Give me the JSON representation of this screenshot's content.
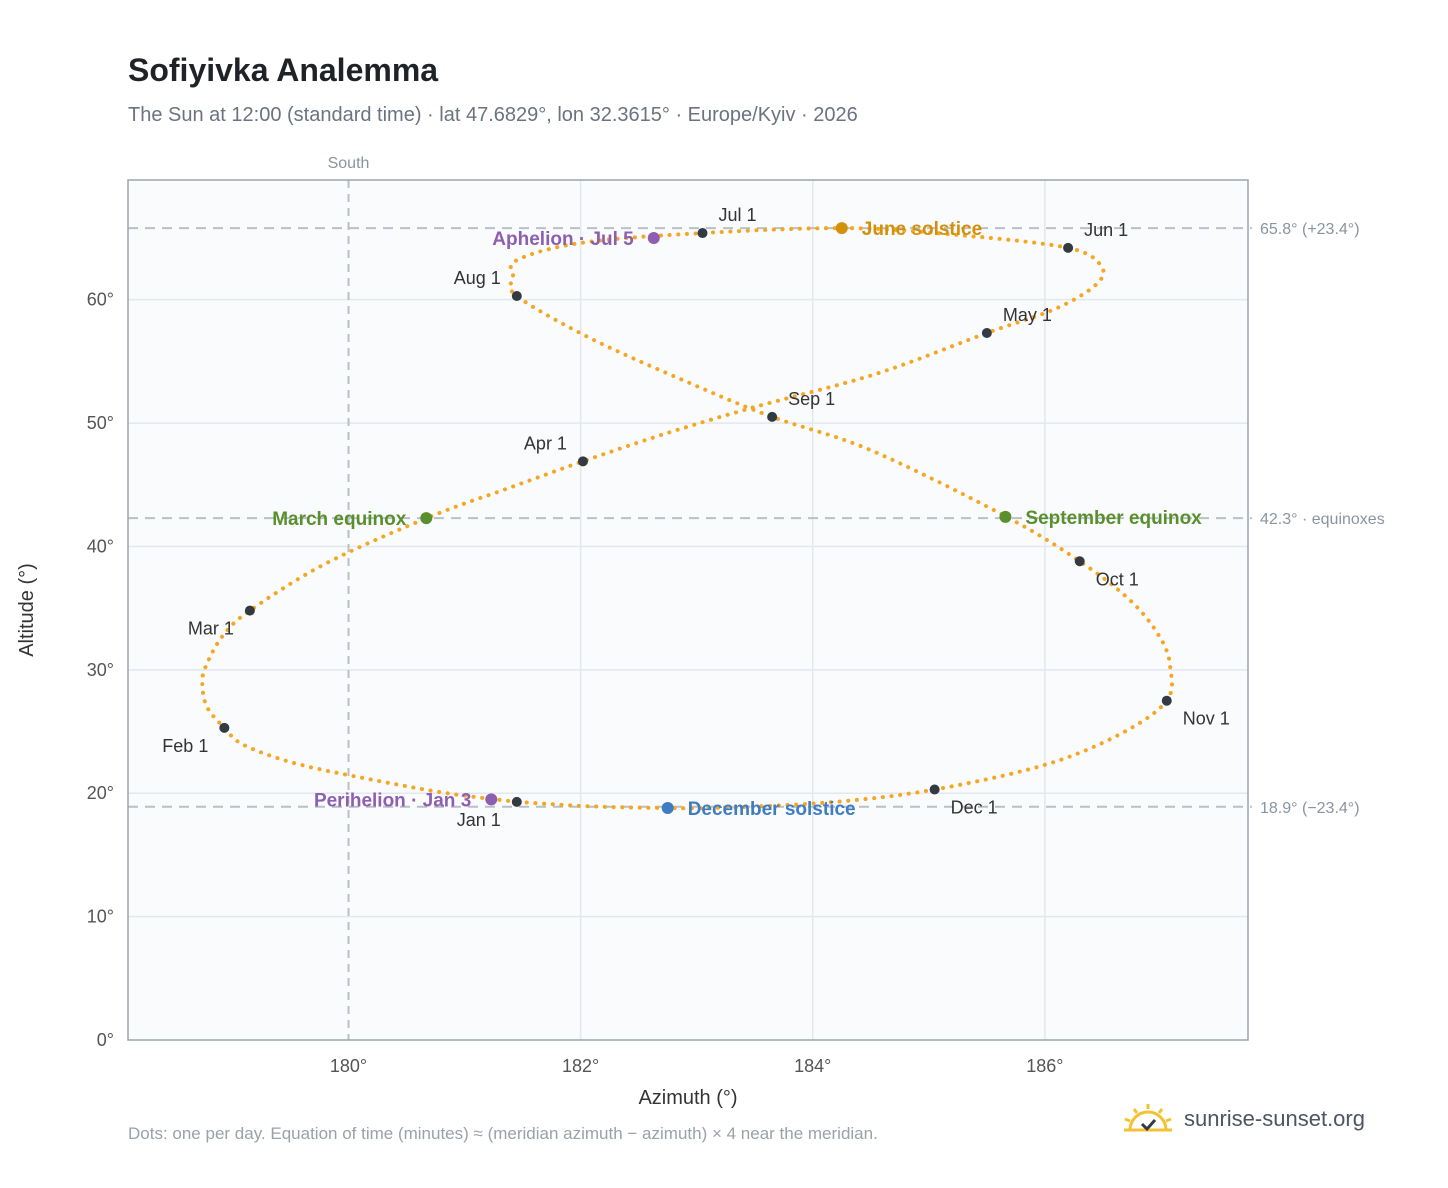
{
  "header": {
    "title": "Sofiyivka Analemma",
    "subtitle": "The Sun at 12:00 (standard time) · lat 47.6829°, lon 32.3615° · Europe/Kyiv · 2026"
  },
  "footer": {
    "note": "Dots: one per day. Equation of time (minutes) ≈ (meridian azimuth − azimuth) × 4 near the meridian.",
    "brand": "sunrise-sunset.org"
  },
  "colors": {
    "path": "#f5a623",
    "month_dot": "#333a41",
    "equinox": "#5a8f2e",
    "june_solstice": "#d4900a",
    "december_solstice": "#3f7cc4",
    "apsis": "#8e5fb0",
    "plot_bg": "#f9fbfd",
    "grid": "#e3e8ee",
    "reference_line": "#b8c0c8",
    "brand_icon": "#f2c230"
  },
  "chart_data": {
    "type": "scatter",
    "xlabel": "Azimuth (°)",
    "ylabel": "Altitude (°)",
    "xlim": [
      178.1,
      187.75
    ],
    "ylim": [
      0,
      69.7
    ],
    "xticks": [
      {
        "value": 180,
        "label": "180°"
      },
      {
        "value": 182,
        "label": "182°"
      },
      {
        "value": 184,
        "label": "184°"
      },
      {
        "value": 186,
        "label": "186°"
      }
    ],
    "yticks": [
      {
        "value": 0,
        "label": "0°"
      },
      {
        "value": 10,
        "label": "10°"
      },
      {
        "value": 20,
        "label": "20°"
      },
      {
        "value": 30,
        "label": "30°"
      },
      {
        "value": 40,
        "label": "40°"
      },
      {
        "value": 50,
        "label": "50°"
      },
      {
        "value": 60,
        "label": "60°"
      }
    ],
    "grid": true,
    "south_line": {
      "value": 180,
      "label": "South"
    },
    "reference_lines": [
      {
        "value": 65.8,
        "label": "65.8° (+23.4°)"
      },
      {
        "value": 42.3,
        "label": "42.3° · equinoxes"
      },
      {
        "value": 18.9,
        "label": "18.9° (−23.4°)"
      }
    ],
    "path_anchors": [
      {
        "x": 181.45,
        "y": 19.3
      },
      {
        "x": 180.85,
        "y": 20.0
      },
      {
        "x": 180.2,
        "y": 21.1
      },
      {
        "x": 179.55,
        "y": 22.4
      },
      {
        "x": 179.1,
        "y": 23.9
      },
      {
        "x": 178.93,
        "y": 25.3
      },
      {
        "x": 178.78,
        "y": 27.0
      },
      {
        "x": 178.74,
        "y": 29.0
      },
      {
        "x": 178.78,
        "y": 30.5
      },
      {
        "x": 178.92,
        "y": 32.8
      },
      {
        "x": 179.15,
        "y": 34.8
      },
      {
        "x": 179.8,
        "y": 38.6
      },
      {
        "x": 180.7,
        "y": 42.4
      },
      {
        "x": 181.4,
        "y": 44.8
      },
      {
        "x": 182.02,
        "y": 46.9
      },
      {
        "x": 182.75,
        "y": 49.2
      },
      {
        "x": 183.5,
        "y": 51.3
      },
      {
        "x": 184.55,
        "y": 54.0
      },
      {
        "x": 185.5,
        "y": 57.3
      },
      {
        "x": 186.1,
        "y": 59.3
      },
      {
        "x": 186.45,
        "y": 61.3
      },
      {
        "x": 186.48,
        "y": 62.8
      },
      {
        "x": 186.2,
        "y": 64.2
      },
      {
        "x": 185.3,
        "y": 65.2
      },
      {
        "x": 184.3,
        "y": 65.8
      },
      {
        "x": 183.05,
        "y": 65.4
      },
      {
        "x": 182.0,
        "y": 64.6
      },
      {
        "x": 181.45,
        "y": 63.2
      },
      {
        "x": 181.42,
        "y": 61.8
      },
      {
        "x": 181.45,
        "y": 60.3
      },
      {
        "x": 182.1,
        "y": 56.8
      },
      {
        "x": 183.0,
        "y": 53.0
      },
      {
        "x": 183.65,
        "y": 50.5
      },
      {
        "x": 184.5,
        "y": 47.8
      },
      {
        "x": 185.65,
        "y": 42.5
      },
      {
        "x": 186.3,
        "y": 38.8
      },
      {
        "x": 186.75,
        "y": 35.5
      },
      {
        "x": 187.0,
        "y": 32.5
      },
      {
        "x": 187.08,
        "y": 30.2
      },
      {
        "x": 187.05,
        "y": 27.5
      },
      {
        "x": 186.65,
        "y": 24.8
      },
      {
        "x": 186.0,
        "y": 22.3
      },
      {
        "x": 185.05,
        "y": 20.3
      },
      {
        "x": 184.2,
        "y": 19.3
      },
      {
        "x": 183.3,
        "y": 18.85
      },
      {
        "x": 182.75,
        "y": 18.8
      },
      {
        "x": 182.05,
        "y": 18.95
      },
      {
        "x": 181.45,
        "y": 19.3
      }
    ],
    "month_markers": [
      {
        "label": "Jan 1",
        "x": 181.45,
        "y": 19.3,
        "anchor": "below-left"
      },
      {
        "label": "Feb 1",
        "x": 178.93,
        "y": 25.3,
        "anchor": "below-left"
      },
      {
        "label": "Mar 1",
        "x": 179.15,
        "y": 34.8,
        "anchor": "below-left"
      },
      {
        "label": "Apr 1",
        "x": 182.02,
        "y": 46.9,
        "anchor": "above-left"
      },
      {
        "label": "May 1",
        "x": 185.5,
        "y": 57.3,
        "anchor": "above-right"
      },
      {
        "label": "Jun 1",
        "x": 186.2,
        "y": 64.2,
        "anchor": "above-right"
      },
      {
        "label": "Jul 1",
        "x": 183.05,
        "y": 65.4,
        "anchor": "above-right"
      },
      {
        "label": "Aug 1",
        "x": 181.45,
        "y": 60.3,
        "anchor": "above-left"
      },
      {
        "label": "Sep 1",
        "x": 183.65,
        "y": 50.5,
        "anchor": "above-right"
      },
      {
        "label": "Oct 1",
        "x": 186.3,
        "y": 38.8,
        "anchor": "below-right"
      },
      {
        "label": "Nov 1",
        "x": 187.05,
        "y": 27.5,
        "anchor": "below-right"
      },
      {
        "label": "Dec 1",
        "x": 185.05,
        "y": 20.3,
        "anchor": "below-right"
      }
    ],
    "events": [
      {
        "label": "March equinox",
        "x": 180.67,
        "y": 42.3,
        "color": "#5a8f2e",
        "side": "left"
      },
      {
        "label": "September equinox",
        "x": 185.66,
        "y": 42.4,
        "color": "#5a8f2e",
        "side": "right"
      },
      {
        "label": "June solstice",
        "x": 184.25,
        "y": 65.8,
        "color": "#d4900a",
        "side": "right"
      },
      {
        "label": "December solstice",
        "x": 182.75,
        "y": 18.8,
        "color": "#3f7cc4",
        "side": "right"
      },
      {
        "label": "Aphelion · Jul 5",
        "x": 182.63,
        "y": 65.0,
        "color": "#8e5fb0",
        "side": "left"
      },
      {
        "label": "Perihelion · Jan 3",
        "x": 181.23,
        "y": 19.5,
        "color": "#8e5fb0",
        "side": "left"
      }
    ]
  }
}
